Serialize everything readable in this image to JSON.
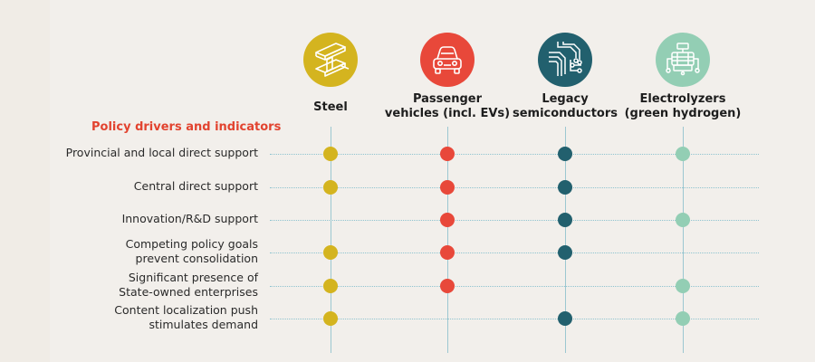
{
  "section_title": "Policy drivers and indicators",
  "columns": [
    {
      "key": "steel",
      "label_lines": [
        "Steel"
      ],
      "icon": "steel-beam-icon",
      "color": "#d4b41f"
    },
    {
      "key": "vehicles",
      "label_lines": [
        "Passenger",
        "vehicles (incl. EVs)"
      ],
      "icon": "car-icon",
      "color": "#e8483a"
    },
    {
      "key": "semis",
      "label_lines": [
        "Legacy",
        "semiconductors"
      ],
      "icon": "circuit-icon",
      "color": "#22606e"
    },
    {
      "key": "electrolyzers",
      "label_lines": [
        "Electrolyzers",
        "(green hydrogen)"
      ],
      "icon": "electrolyzer-icon",
      "color": "#93ceb4"
    }
  ],
  "rows": [
    {
      "label_lines": [
        "Provincial and local direct support"
      ],
      "marks": [
        true,
        true,
        true,
        true
      ]
    },
    {
      "label_lines": [
        "Central direct support"
      ],
      "marks": [
        true,
        true,
        true,
        false
      ]
    },
    {
      "label_lines": [
        "Innovation/R&D support"
      ],
      "marks": [
        false,
        true,
        true,
        true
      ]
    },
    {
      "label_lines": [
        "Competing policy goals",
        "prevent consolidation"
      ],
      "marks": [
        true,
        true,
        true,
        false
      ]
    },
    {
      "label_lines": [
        "Significant presence of",
        "State-owned enterprises"
      ],
      "marks": [
        true,
        true,
        false,
        true
      ]
    },
    {
      "label_lines": [
        "Content localization push",
        "stimulates demand"
      ],
      "marks": [
        true,
        false,
        true,
        true
      ]
    }
  ]
}
